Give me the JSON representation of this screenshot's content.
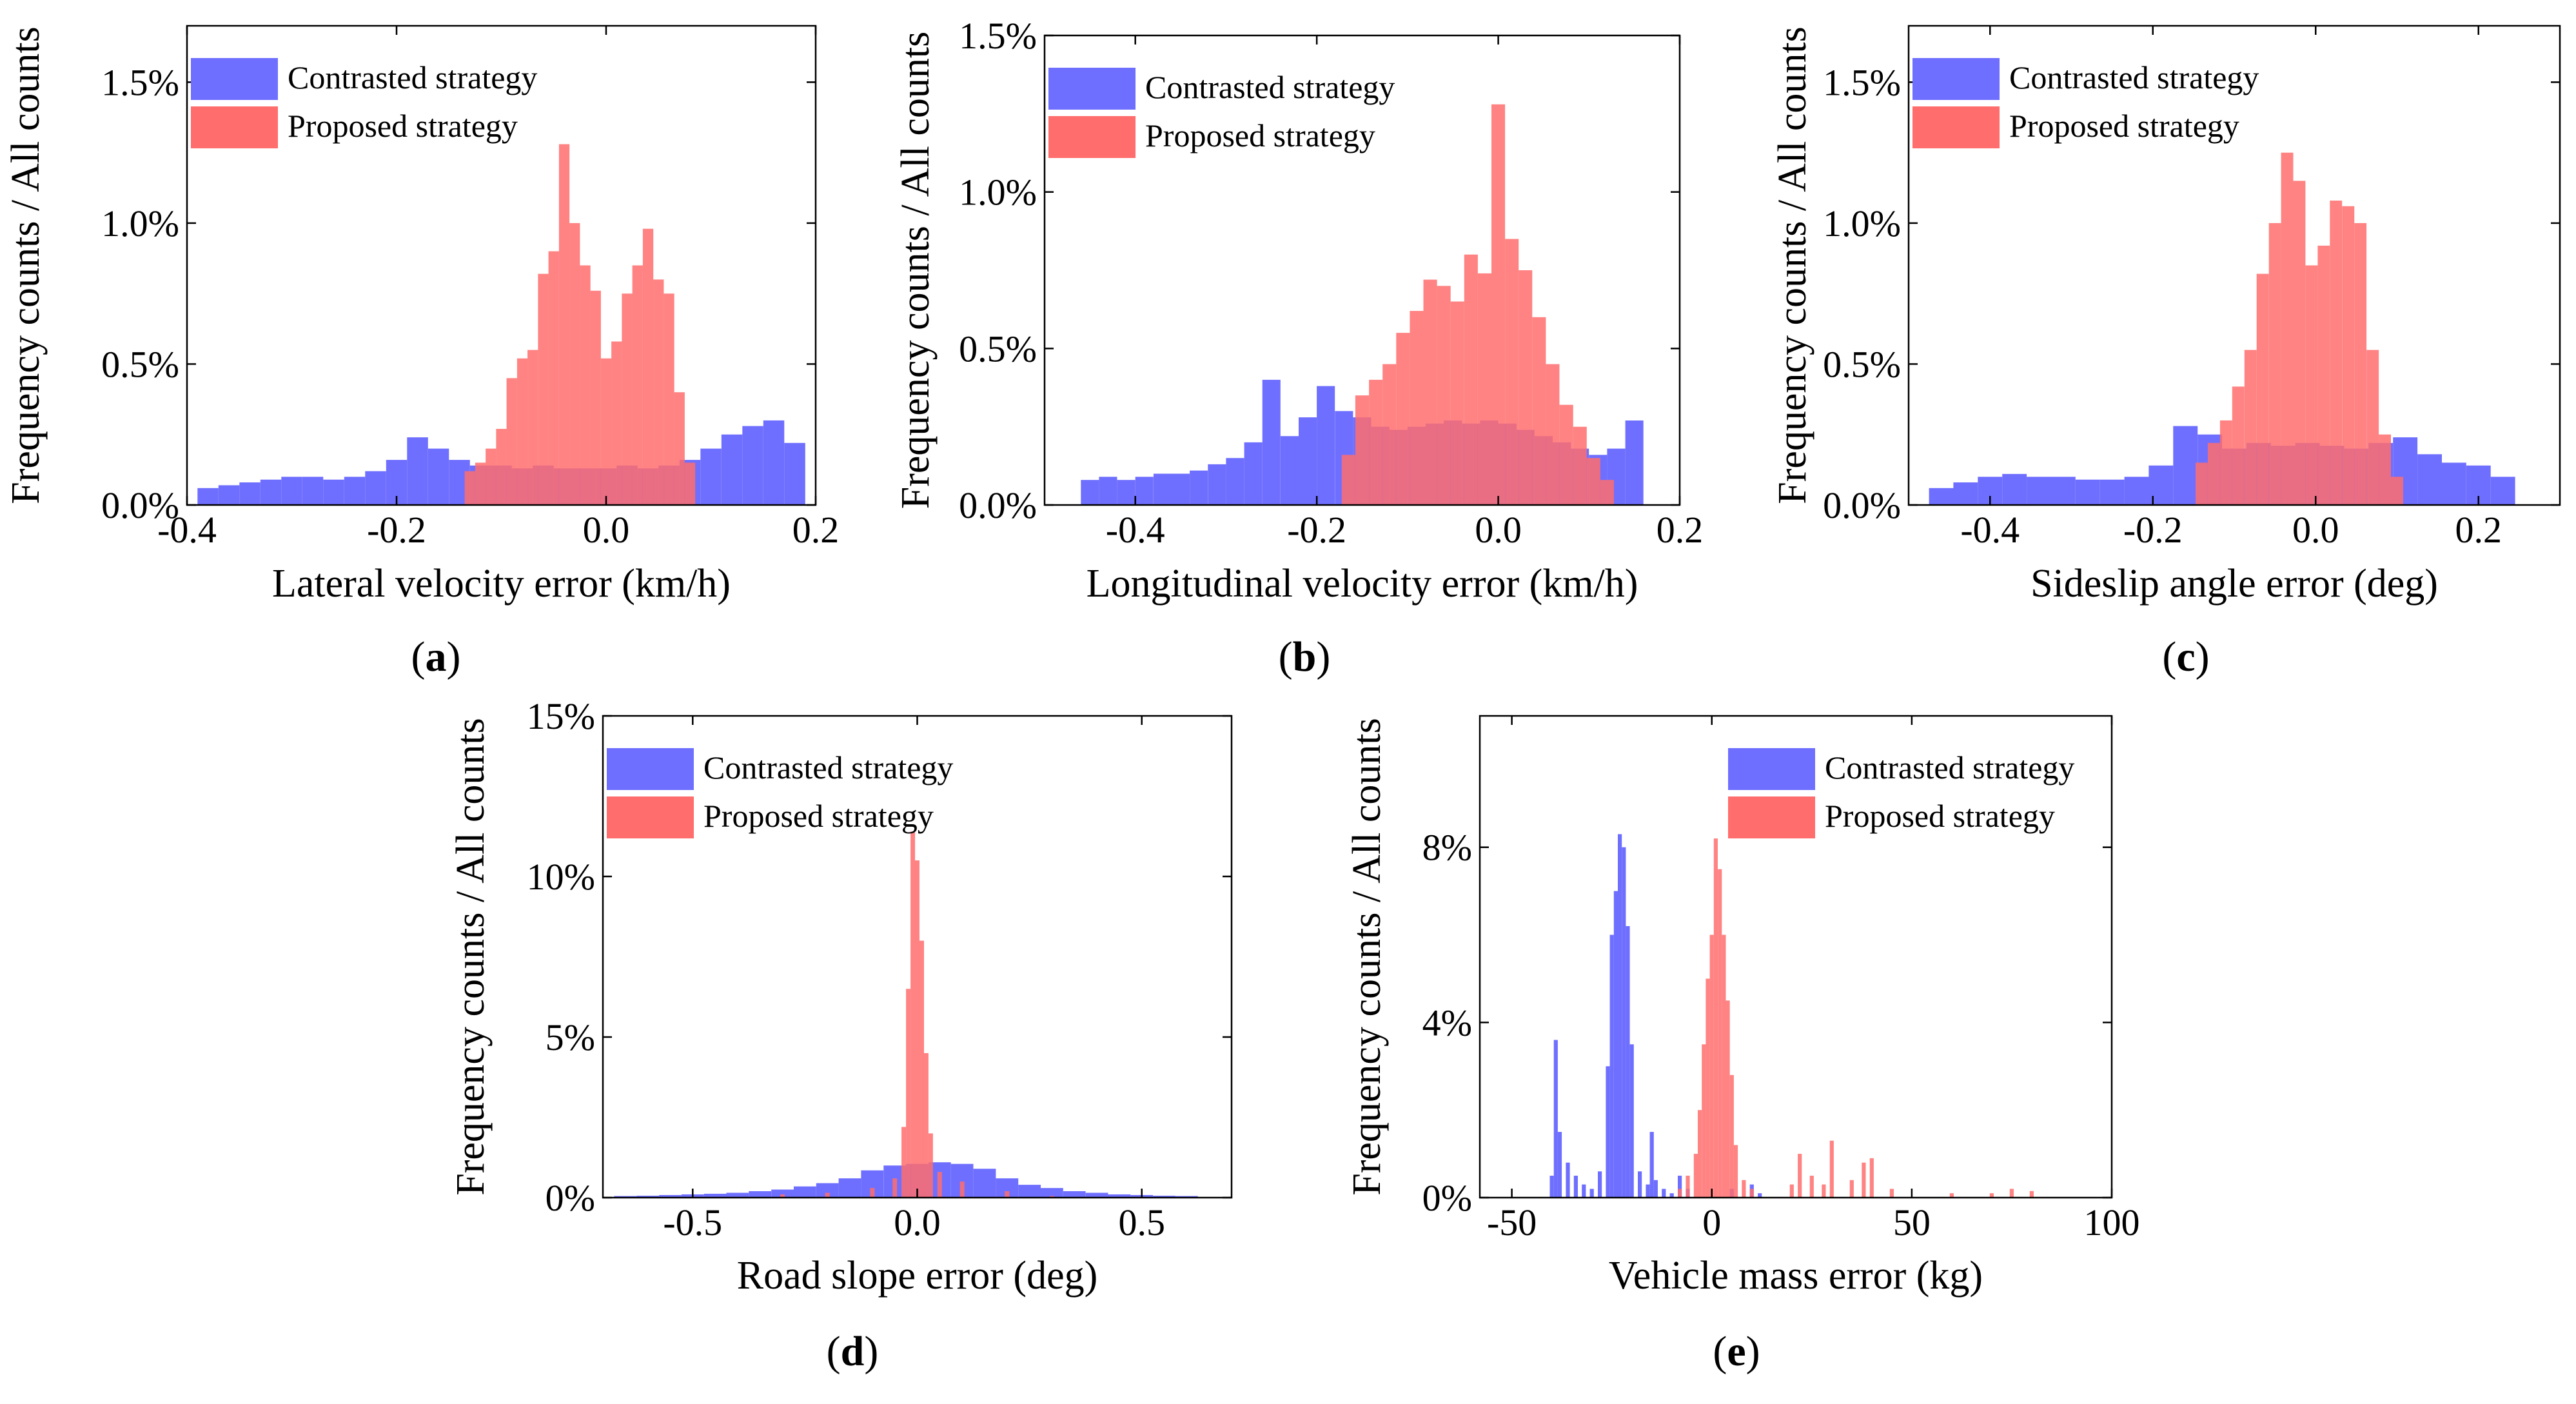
{
  "figure": {
    "colors": {
      "contrasted": "#6f6fff",
      "proposed": "#ff6d6d",
      "overlap": "#c8438a",
      "axis": "#000000",
      "background": "#ffffff"
    }
  },
  "chart_data": [
    {
      "id": "a",
      "type": "bar",
      "subtype": "overlaid-histogram",
      "panel_label": "a",
      "xlabel": "Lateral velocity error (km/h)",
      "ylabel": "Frequency counts / All counts",
      "xlim": [
        -0.4,
        0.2
      ],
      "ylim": [
        0,
        1.7
      ],
      "xticks": [
        -0.4,
        -0.2,
        0.0,
        0.2
      ],
      "xtick_labels": [
        "-0.4",
        "-0.2",
        "0.0",
        "0.2"
      ],
      "yticks": [
        0,
        0.5,
        1.0,
        1.5
      ],
      "ytick_labels": [
        "0.0%",
        "0.5%",
        "1.0%",
        "1.5%"
      ],
      "legend": {
        "placement": "top-left",
        "entries": [
          "Contrasted strategy",
          "Proposed strategy"
        ]
      },
      "series": [
        {
          "name": "Contrasted strategy",
          "x": [
            -0.38,
            -0.36,
            -0.34,
            -0.32,
            -0.3,
            -0.28,
            -0.26,
            -0.24,
            -0.22,
            -0.2,
            -0.18,
            -0.16,
            -0.14,
            -0.12,
            -0.1,
            -0.08,
            -0.06,
            -0.04,
            -0.02,
            0.0,
            0.02,
            0.04,
            0.06,
            0.08,
            0.1,
            0.12,
            0.14,
            0.16,
            0.18
          ],
          "values": [
            0.06,
            0.07,
            0.08,
            0.09,
            0.1,
            0.1,
            0.09,
            0.1,
            0.12,
            0.16,
            0.24,
            0.2,
            0.16,
            0.14,
            0.14,
            0.13,
            0.14,
            0.13,
            0.13,
            0.13,
            0.14,
            0.13,
            0.14,
            0.16,
            0.2,
            0.25,
            0.28,
            0.3,
            0.22
          ]
        },
        {
          "name": "Proposed strategy",
          "x": [
            -0.13,
            -0.12,
            -0.11,
            -0.1,
            -0.09,
            -0.08,
            -0.07,
            -0.06,
            -0.05,
            -0.04,
            -0.03,
            -0.02,
            -0.01,
            0.0,
            0.01,
            0.02,
            0.03,
            0.04,
            0.05,
            0.06,
            0.07,
            0.08
          ],
          "values": [
            0.12,
            0.15,
            0.2,
            0.27,
            0.45,
            0.52,
            0.55,
            0.82,
            0.9,
            1.28,
            1.0,
            0.85,
            0.76,
            0.52,
            0.58,
            0.75,
            0.85,
            0.98,
            0.8,
            0.75,
            0.4,
            0.15
          ]
        }
      ]
    },
    {
      "id": "b",
      "type": "bar",
      "subtype": "overlaid-histogram",
      "panel_label": "b",
      "xlabel": "Longitudinal velocity error (km/h)",
      "ylabel": "Frequency counts / All counts",
      "xlim": [
        -0.5,
        0.2
      ],
      "ylim": [
        0,
        1.5
      ],
      "xticks": [
        -0.4,
        -0.2,
        0.0,
        0.2
      ],
      "xtick_labels": [
        "-0.4",
        "-0.2",
        "0.0",
        "0.2"
      ],
      "yticks": [
        0,
        0.5,
        1.0,
        1.5
      ],
      "ytick_labels": [
        "0.0%",
        "0.5%",
        "1.0%",
        "1.5%"
      ],
      "legend": {
        "placement": "top-left",
        "entries": [
          "Contrasted strategy",
          "Proposed strategy"
        ]
      },
      "series": [
        {
          "name": "Contrasted strategy",
          "x": [
            -0.45,
            -0.43,
            -0.41,
            -0.39,
            -0.37,
            -0.35,
            -0.33,
            -0.31,
            -0.29,
            -0.27,
            -0.25,
            -0.23,
            -0.21,
            -0.19,
            -0.17,
            -0.15,
            -0.13,
            -0.11,
            -0.09,
            -0.07,
            -0.05,
            -0.03,
            -0.01,
            0.01,
            0.03,
            0.05,
            0.07,
            0.09,
            0.11,
            0.13,
            0.15
          ],
          "values": [
            0.08,
            0.09,
            0.08,
            0.09,
            0.1,
            0.1,
            0.11,
            0.13,
            0.15,
            0.2,
            0.4,
            0.22,
            0.28,
            0.38,
            0.3,
            0.28,
            0.25,
            0.24,
            0.25,
            0.26,
            0.27,
            0.26,
            0.27,
            0.26,
            0.24,
            0.22,
            0.2,
            0.18,
            0.16,
            0.18,
            0.27
          ]
        },
        {
          "name": "Proposed strategy",
          "x": [
            -0.165,
            -0.15,
            -0.135,
            -0.12,
            -0.105,
            -0.09,
            -0.075,
            -0.06,
            -0.045,
            -0.03,
            -0.015,
            0.0,
            0.015,
            0.03,
            0.045,
            0.06,
            0.075,
            0.09,
            0.105,
            0.12
          ],
          "values": [
            0.16,
            0.35,
            0.4,
            0.45,
            0.55,
            0.62,
            0.72,
            0.7,
            0.65,
            0.8,
            0.74,
            1.28,
            0.85,
            0.75,
            0.6,
            0.45,
            0.32,
            0.25,
            0.15,
            0.08
          ]
        }
      ]
    },
    {
      "id": "c",
      "type": "bar",
      "subtype": "overlaid-histogram",
      "panel_label": "c",
      "xlabel": "Sideslip angle error (deg)",
      "ylabel": "Frequency counts / All counts",
      "xlim": [
        -0.5,
        0.3
      ],
      "ylim": [
        0,
        1.7
      ],
      "xticks": [
        -0.4,
        -0.2,
        0.0,
        0.2
      ],
      "xtick_labels": [
        "-0.4",
        "-0.2",
        "0.0",
        "0.2"
      ],
      "yticks": [
        0,
        0.5,
        1.0,
        1.5
      ],
      "ytick_labels": [
        "0.0%",
        "0.5%",
        "1.0%",
        "1.5%"
      ],
      "legend": {
        "placement": "top-left",
        "entries": [
          "Contrasted strategy",
          "Proposed strategy"
        ]
      },
      "series": [
        {
          "name": "Contrasted strategy",
          "x": [
            -0.46,
            -0.43,
            -0.4,
            -0.37,
            -0.34,
            -0.31,
            -0.28,
            -0.25,
            -0.22,
            -0.19,
            -0.16,
            -0.13,
            -0.1,
            -0.07,
            -0.04,
            -0.01,
            0.02,
            0.05,
            0.08,
            0.11,
            0.14,
            0.17,
            0.2,
            0.23
          ],
          "values": [
            0.06,
            0.08,
            0.1,
            0.11,
            0.1,
            0.1,
            0.09,
            0.09,
            0.1,
            0.14,
            0.28,
            0.25,
            0.2,
            0.22,
            0.21,
            0.22,
            0.21,
            0.2,
            0.22,
            0.24,
            0.18,
            0.15,
            0.14,
            0.1
          ]
        },
        {
          "name": "Proposed strategy",
          "x": [
            -0.14,
            -0.125,
            -0.11,
            -0.095,
            -0.08,
            -0.065,
            -0.05,
            -0.035,
            -0.02,
            -0.005,
            0.01,
            0.025,
            0.04,
            0.055,
            0.07,
            0.085,
            0.1
          ],
          "values": [
            0.15,
            0.22,
            0.3,
            0.42,
            0.55,
            0.82,
            1.0,
            1.25,
            1.15,
            0.85,
            0.92,
            1.08,
            1.06,
            1.0,
            0.55,
            0.25,
            0.1
          ]
        }
      ]
    },
    {
      "id": "d",
      "type": "bar",
      "subtype": "overlaid-histogram",
      "panel_label": "d",
      "xlabel": "Road slope error (deg)",
      "ylabel": "Frequency counts / All counts",
      "xlim": [
        -0.7,
        0.7
      ],
      "ylim": [
        0,
        15
      ],
      "xticks": [
        -0.5,
        0.0,
        0.5
      ],
      "xtick_labels": [
        "-0.5",
        "0.0",
        "0.5"
      ],
      "yticks": [
        0,
        5,
        10,
        15
      ],
      "ytick_labels": [
        "0%",
        "5%",
        "10%",
        "15%"
      ],
      "legend": {
        "placement": "top-left",
        "entries": [
          "Contrasted strategy",
          "Proposed strategy"
        ]
      },
      "series": [
        {
          "name": "Contrasted strategy",
          "x": [
            -0.65,
            -0.6,
            -0.55,
            -0.5,
            -0.45,
            -0.4,
            -0.35,
            -0.3,
            -0.25,
            -0.2,
            -0.15,
            -0.1,
            -0.05,
            0.0,
            0.05,
            0.1,
            0.15,
            0.2,
            0.25,
            0.3,
            0.35,
            0.4,
            0.45,
            0.5,
            0.55,
            0.6
          ],
          "values": [
            0.05,
            0.06,
            0.08,
            0.1,
            0.12,
            0.15,
            0.2,
            0.25,
            0.35,
            0.45,
            0.6,
            0.85,
            1.0,
            1.05,
            1.1,
            1.05,
            0.9,
            0.6,
            0.4,
            0.3,
            0.2,
            0.15,
            0.1,
            0.08,
            0.06,
            0.05
          ]
        },
        {
          "name": "Proposed strategy",
          "x": [
            -0.3,
            -0.2,
            -0.1,
            -0.05,
            -0.03,
            -0.02,
            -0.01,
            0.0,
            0.01,
            0.02,
            0.03,
            0.05,
            0.1,
            0.2,
            0.3
          ],
          "values": [
            0.1,
            0.15,
            0.3,
            0.6,
            2.2,
            6.5,
            11.4,
            10.5,
            8.0,
            4.5,
            2.0,
            0.8,
            0.5,
            0.2,
            0.05
          ]
        }
      ]
    },
    {
      "id": "e",
      "type": "bar",
      "subtype": "overlaid-histogram",
      "panel_label": "e",
      "xlabel": "Vehicle mass error (kg)",
      "ylabel": "Frequency counts / All counts",
      "xlim": [
        -58,
        100
      ],
      "ylim": [
        0,
        11
      ],
      "xticks": [
        -50,
        0,
        50,
        100
      ],
      "xtick_labels": [
        "-50",
        "0",
        "50",
        "100"
      ],
      "yticks": [
        0,
        4,
        8
      ],
      "ytick_labels": [
        "0%",
        "4%",
        "8%"
      ],
      "legend": {
        "placement": "top-right",
        "entries": [
          "Contrasted strategy",
          "Proposed strategy"
        ]
      },
      "series": [
        {
          "name": "Contrasted strategy",
          "x": [
            -40,
            -39,
            -38,
            -36,
            -34,
            -32,
            -30,
            -28,
            -26,
            -25,
            -24,
            -23,
            -22,
            -21,
            -20,
            -18,
            -16,
            -15,
            -14,
            -12,
            -10,
            -8,
            -6,
            5,
            10,
            12
          ],
          "values": [
            0.5,
            3.6,
            1.5,
            0.8,
            0.5,
            0.3,
            0.2,
            0.6,
            3.0,
            6.0,
            7.0,
            8.3,
            8.0,
            6.2,
            3.5,
            0.6,
            0.3,
            1.5,
            0.4,
            0.2,
            0.1,
            0.5,
            0.2,
            0.2,
            0.3,
            0.1
          ]
        },
        {
          "name": "Proposed strategy",
          "x": [
            -8,
            -6,
            -4,
            -3,
            -2,
            -1,
            0,
            1,
            2,
            3,
            4,
            5,
            6,
            8,
            10,
            20,
            22,
            25,
            28,
            30,
            35,
            38,
            40,
            45,
            60,
            70,
            75,
            80
          ],
          "values": [
            0.2,
            0.5,
            1.0,
            2.0,
            3.5,
            5.0,
            6.0,
            8.2,
            7.5,
            6.0,
            4.5,
            2.8,
            1.2,
            0.4,
            0.2,
            0.3,
            1.0,
            0.5,
            0.3,
            1.3,
            0.4,
            0.8,
            0.9,
            0.2,
            0.1,
            0.1,
            0.2,
            0.15
          ]
        }
      ]
    }
  ]
}
